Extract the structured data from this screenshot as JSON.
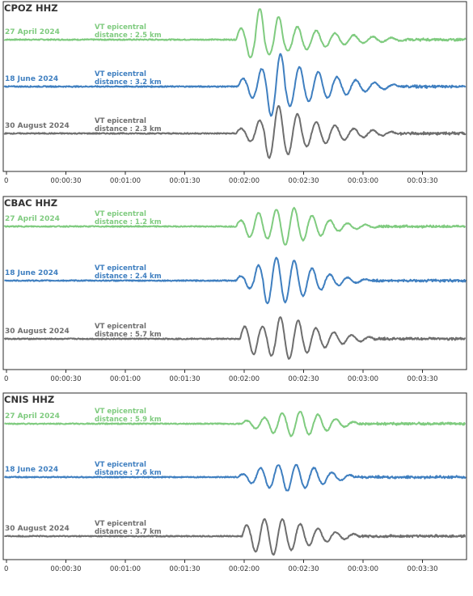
{
  "colors": {
    "april": "#7fcb7f",
    "june": "#3f7fc0",
    "august": "#6e6e6e",
    "frame": "#2b2b2b",
    "tick_text": "#333333"
  },
  "chart_data": [
    {
      "type": "line",
      "title": "CPOZ  HHZ",
      "xlim_seconds": [
        0,
        228
      ],
      "x_ticks": [
        "0",
        "00:00:30",
        "00:01:00",
        "00:01:30",
        "00:02:00",
        "00:02:30",
        "00:03:00",
        "00:03:30"
      ],
      "series": [
        {
          "name": "27 April 2024",
          "label": "VT epicentral",
          "distance": "distance : 2.5 km",
          "color_key": "april",
          "onset_s": 116,
          "amp": [
            0.35,
            -0.55,
            0.95,
            -0.45,
            0.7,
            -0.35,
            0.4,
            -0.3,
            0.28,
            -0.22,
            0.2,
            -0.15,
            0.14,
            -0.1,
            0.09,
            -0.07,
            0.06,
            -0.04
          ],
          "period_s": 9.5
        },
        {
          "name": "18 June 2024",
          "label": "VT epicentral",
          "distance": "distance : 3.2 km",
          "color_key": "june",
          "onset_s": 117,
          "amp": [
            0.25,
            -0.35,
            0.55,
            -0.9,
            1.0,
            -0.6,
            0.6,
            -0.45,
            0.45,
            -0.35,
            0.3,
            -0.25,
            0.2,
            -0.15,
            0.12,
            -0.08,
            0.06
          ],
          "period_s": 9.5
        },
        {
          "name": "30 August 2024",
          "label": "VT epicentral",
          "distance": "distance : 2.3 km",
          "color_key": "august",
          "onset_s": 116,
          "amp": [
            0.15,
            -0.25,
            0.4,
            -0.75,
            0.85,
            -0.65,
            0.6,
            -0.4,
            0.35,
            -0.3,
            0.25,
            -0.2,
            0.15,
            -0.12,
            0.1,
            -0.07,
            0.05
          ],
          "period_s": 9.5
        }
      ]
    },
    {
      "type": "line",
      "title": "CBAC  HHZ",
      "xlim_seconds": [
        0,
        228
      ],
      "x_ticks": [
        "0",
        "00:00:30",
        "00:01:00",
        "00:01:30",
        "00:02:00",
        "00:02:30",
        "00:03:00",
        "00:03:30"
      ],
      "series": [
        {
          "name": "27 April 2024",
          "label": "VT epicentral",
          "distance": "distance : 1.2 km",
          "color_key": "april",
          "onset_s": 116,
          "amp": [
            0.2,
            -0.35,
            0.45,
            -0.4,
            0.55,
            -0.6,
            0.6,
            -0.45,
            0.35,
            -0.3,
            0.2,
            -0.15,
            0.1,
            -0.08,
            0.06,
            -0.04
          ],
          "period_s": 9.0
        },
        {
          "name": "18 June 2024",
          "label": "VT epicentral",
          "distance": "distance : 2.4 km",
          "color_key": "june",
          "onset_s": 116,
          "amp": [
            0.15,
            -0.25,
            0.5,
            -0.75,
            0.75,
            -0.7,
            0.65,
            -0.5,
            0.4,
            -0.3,
            0.2,
            -0.15,
            0.1,
            -0.07,
            0.05
          ],
          "period_s": 9.0
        },
        {
          "name": "30 August 2024",
          "label": "VT epicentral",
          "distance": "distance : 5.7 km",
          "color_key": "august",
          "onset_s": 118,
          "amp": [
            0.4,
            -0.5,
            0.4,
            -0.55,
            0.7,
            -0.65,
            0.6,
            -0.45,
            0.35,
            -0.28,
            0.22,
            -0.16,
            0.12,
            -0.08,
            0.06
          ],
          "period_s": 9.0
        }
      ]
    },
    {
      "type": "line",
      "title": "CNIS  HHZ",
      "xlim_seconds": [
        0,
        228
      ],
      "x_ticks": [
        "0",
        "00:00:30",
        "00:01:00",
        "00:01:30",
        "00:02:00",
        "00:02:30",
        "00:03:00",
        "00:03:30"
      ],
      "series": [
        {
          "name": "27 April 2024",
          "label": "VT epicentral",
          "distance": "distance : 5.9 km",
          "color_key": "april",
          "onset_s": 119,
          "amp": [
            0.1,
            -0.15,
            0.2,
            -0.3,
            0.35,
            -0.4,
            0.4,
            -0.35,
            0.3,
            -0.22,
            0.16,
            -0.1,
            0.06
          ],
          "period_s": 9.0
        },
        {
          "name": "18 June 2024",
          "label": "VT epicentral",
          "distance": "distance : 7.6 km",
          "color_key": "june",
          "onset_s": 117,
          "amp": [
            0.1,
            -0.2,
            0.3,
            -0.35,
            0.4,
            -0.45,
            0.4,
            -0.35,
            0.3,
            -0.22,
            0.15,
            -0.1,
            0.07
          ],
          "period_s": 9.0
        },
        {
          "name": "30 August 2024",
          "label": "VT epicentral",
          "distance": "distance : 3.7 km",
          "color_key": "august",
          "onset_s": 119,
          "amp": [
            0.35,
            -0.5,
            0.55,
            -0.6,
            0.55,
            -0.45,
            0.4,
            -0.3,
            0.25,
            -0.18,
            0.13,
            -0.1,
            0.07
          ],
          "period_s": 9.0
        }
      ]
    }
  ]
}
